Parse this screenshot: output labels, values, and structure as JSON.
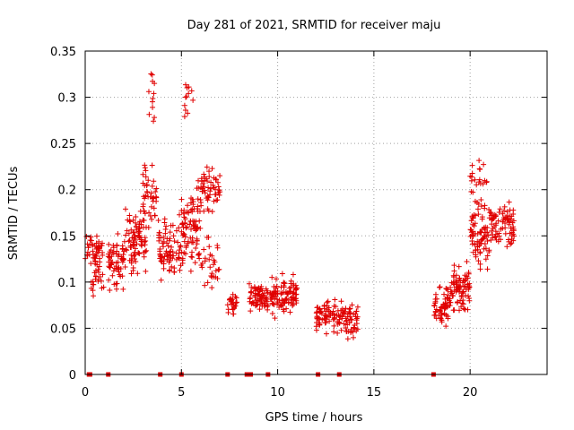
{
  "chart_data": {
    "type": "scatter",
    "title": "Day 281 of 2021, SRMTID for receiver maju",
    "xlabel": "GPS time / hours",
    "ylabel": "SRMTID / TECUs",
    "xlim": [
      0,
      24
    ],
    "ylim": [
      0,
      0.35
    ],
    "x_ticks": [
      0,
      5,
      10,
      15,
      20
    ],
    "x_tick_labels": [
      "0",
      "5",
      "10",
      "15",
      "20"
    ],
    "y_ticks": [
      0,
      0.05,
      0.1,
      0.15,
      0.2,
      0.25,
      0.3,
      0.35
    ],
    "y_tick_labels": [
      "0",
      "0.05",
      "0.1",
      "0.15",
      "0.2",
      "0.25",
      "0.3",
      "0.35"
    ],
    "grid": true,
    "marker": "plus",
    "color": "#e00000",
    "series": [
      {
        "name": "SRMTID",
        "clusters": [
          {
            "x_range": [
              0.0,
              0.9
            ],
            "y_center": 0.135,
            "y_spread": 0.025,
            "count": 45
          },
          {
            "x_range": [
              0.3,
              1.0
            ],
            "y_center": 0.105,
            "y_spread": 0.03,
            "count": 25
          },
          {
            "x_range": [
              1.2,
              2.0
            ],
            "y_center": 0.12,
            "y_spread": 0.04,
            "count": 60
          },
          {
            "x_range": [
              2.0,
              3.2
            ],
            "y_center": 0.145,
            "y_spread": 0.045,
            "count": 90
          },
          {
            "x_range": [
              3.0,
              3.7
            ],
            "y_center": 0.195,
            "y_spread": 0.045,
            "count": 45
          },
          {
            "x_range": [
              3.3,
              3.6
            ],
            "y_center": 0.3,
            "y_spread": 0.045,
            "count": 12
          },
          {
            "x_range": [
              3.8,
              5.0
            ],
            "y_center": 0.135,
            "y_spread": 0.045,
            "count": 80
          },
          {
            "x_range": [
              5.0,
              6.0
            ],
            "y_center": 0.15,
            "y_spread": 0.05,
            "count": 85
          },
          {
            "x_range": [
              5.1,
              5.6
            ],
            "y_center": 0.3,
            "y_spread": 0.04,
            "count": 12
          },
          {
            "x_range": [
              5.8,
              7.0
            ],
            "y_center": 0.2,
            "y_spread": 0.035,
            "count": 60
          },
          {
            "x_range": [
              6.0,
              7.0
            ],
            "y_center": 0.12,
            "y_spread": 0.035,
            "count": 30
          },
          {
            "x_range": [
              7.4,
              7.9
            ],
            "y_center": 0.075,
            "y_spread": 0.02,
            "count": 25
          },
          {
            "x_range": [
              8.5,
              9.5
            ],
            "y_center": 0.085,
            "y_spread": 0.025,
            "count": 70
          },
          {
            "x_range": [
              9.5,
              11.0
            ],
            "y_center": 0.085,
            "y_spread": 0.03,
            "count": 100
          },
          {
            "x_range": [
              12.0,
              13.0
            ],
            "y_center": 0.065,
            "y_spread": 0.025,
            "count": 60
          },
          {
            "x_range": [
              13.0,
              14.2
            ],
            "y_center": 0.06,
            "y_spread": 0.025,
            "count": 70
          },
          {
            "x_range": [
              18.1,
              19.0
            ],
            "y_center": 0.075,
            "y_spread": 0.03,
            "count": 60
          },
          {
            "x_range": [
              19.0,
              20.0
            ],
            "y_center": 0.095,
            "y_spread": 0.035,
            "count": 80
          },
          {
            "x_range": [
              20.0,
              21.0
            ],
            "y_center": 0.15,
            "y_spread": 0.05,
            "count": 80
          },
          {
            "x_range": [
              20.0,
              21.0
            ],
            "y_center": 0.21,
            "y_spread": 0.025,
            "count": 20
          },
          {
            "x_range": [
              21.0,
              22.3
            ],
            "y_center": 0.16,
            "y_spread": 0.035,
            "count": 80
          }
        ],
        "baseline_markers_x": [
          0.2,
          0.25,
          1.2,
          3.9,
          5.0,
          7.4,
          8.4,
          8.5,
          8.6,
          9.5,
          12.1,
          13.2,
          18.1
        ]
      }
    ]
  }
}
